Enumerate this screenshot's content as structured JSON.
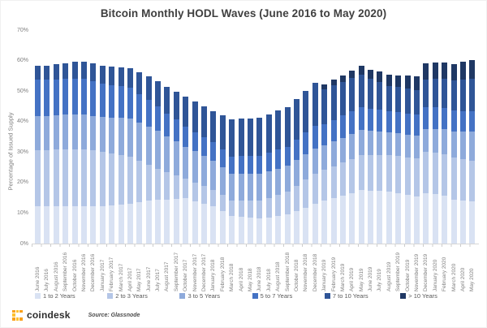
{
  "title": "Bitcoin Monthly HODL Waves (June 2016 to May 2020)",
  "chart_data": {
    "type": "bar",
    "stacked": true,
    "title": "Bitcoin Monthly HODL Waves (June 2016 to May 2020)",
    "xlabel": "",
    "ylabel": "Percentage of Issued Supply",
    "ylim": [
      0,
      70
    ],
    "ytick_labels": [
      "0%",
      "10%",
      "20%",
      "30%",
      "40%",
      "50%",
      "60%",
      "70%"
    ],
    "grid": false,
    "legend_position": "bottom",
    "categories": [
      "June 2016",
      "July 2016",
      "August 2016",
      "September 2016",
      "October 2016",
      "November 2016",
      "December 2016",
      "January 2017",
      "February 2017",
      "March 2017",
      "April 2017",
      "May 2017",
      "June 2017",
      "July 2017",
      "August 2017",
      "September 2017",
      "October 2017",
      "November 2017",
      "December 2017",
      "January 2018",
      "February 2018",
      "March 2018",
      "April 2018",
      "May 2018",
      "June 2018",
      "July 2018",
      "August 2018",
      "September 2018",
      "October 2018",
      "November 2018",
      "December 2018",
      "January 2019",
      "February 2019",
      "March 2019",
      "April 2019",
      "May 2019",
      "June 2019",
      "July 2019",
      "August 2019",
      "September 2019",
      "October 2019",
      "November 2019",
      "December 2019",
      "January 2020",
      "February 2020",
      "March 2020",
      "April 2020",
      "May 2020"
    ],
    "series": [
      {
        "name": "1 to 2 Years",
        "color": "#d9e2f3",
        "values": [
          12.2,
          12.2,
          12.2,
          12.3,
          12.3,
          12.3,
          12.2,
          12.2,
          12.5,
          12.8,
          13.1,
          13.5,
          14.0,
          14.4,
          14.5,
          14.7,
          14.8,
          13.9,
          13.1,
          12.2,
          10.7,
          9.1,
          8.8,
          8.5,
          8.2,
          8.6,
          9.1,
          9.5,
          10.7,
          11.8,
          13.0,
          14.0,
          14.9,
          15.8,
          16.6,
          17.5,
          17.3,
          17.2,
          17.0,
          16.5,
          16.0,
          15.5,
          16.5,
          16.2,
          15.6,
          14.5,
          14.2,
          13.9
        ]
      },
      {
        "name": "2 to 3 Years",
        "color": "#b4c6e7",
        "values": [
          18.5,
          18.5,
          18.6,
          18.6,
          18.7,
          18.7,
          18.3,
          17.8,
          17.0,
          16.3,
          15.5,
          13.7,
          11.8,
          10.0,
          8.8,
          7.7,
          6.5,
          6.2,
          5.8,
          5.5,
          5.2,
          4.9,
          5.2,
          5.5,
          5.8,
          6.4,
          6.9,
          7.5,
          8.3,
          9.2,
          10.0,
          10.2,
          10.5,
          10.8,
          11.2,
          11.5,
          11.7,
          11.8,
          12.0,
          12.2,
          12.3,
          12.5,
          13.5,
          13.6,
          13.7,
          13.8,
          13.5,
          13.2
        ]
      },
      {
        "name": "3 to 5 Years",
        "color": "#8eaadb",
        "values": [
          11.1,
          11.2,
          11.2,
          11.3,
          11.3,
          11.4,
          11.4,
          11.5,
          11.8,
          12.2,
          12.5,
          12.5,
          12.5,
          12.5,
          11.8,
          11.2,
          10.5,
          10.2,
          9.8,
          9.5,
          9.2,
          8.9,
          8.9,
          8.8,
          8.8,
          8.7,
          8.6,
          8.5,
          8.4,
          8.3,
          8.2,
          8.0,
          8.1,
          8.1,
          8.2,
          8.3,
          8.0,
          7.8,
          7.5,
          7.4,
          7.4,
          7.3,
          7.5,
          7.8,
          8.2,
          8.5,
          9.0,
          9.6
        ]
      },
      {
        "name": "5 to 7 Years",
        "color": "#4472c4",
        "values": [
          12.0,
          11.9,
          11.9,
          11.8,
          11.8,
          11.7,
          11.4,
          11.0,
          10.7,
          10.3,
          10.0,
          9.3,
          8.7,
          8.0,
          7.5,
          7.0,
          6.5,
          6.3,
          6.2,
          6.0,
          5.8,
          5.7,
          5.8,
          5.9,
          6.0,
          6.1,
          6.2,
          6.3,
          6.7,
          7.1,
          7.5,
          7.0,
          7.1,
          7.3,
          7.4,
          7.5,
          7.3,
          7.2,
          7.0,
          7.0,
          7.0,
          7.0,
          7.1,
          7.0,
          6.9,
          6.8,
          6.8,
          6.7
        ]
      },
      {
        "name": "7 to 10 Years",
        "color": "#2f5597",
        "values": [
          4.4,
          4.6,
          4.9,
          5.1,
          5.4,
          5.6,
          5.7,
          5.8,
          6.0,
          6.3,
          6.5,
          7.1,
          7.8,
          8.4,
          8.9,
          9.3,
          9.8,
          9.9,
          10.0,
          10.1,
          11.2,
          12.2,
          12.3,
          12.3,
          12.4,
          12.6,
          12.8,
          13.0,
          13.3,
          13.7,
          14.0,
          11.5,
          11.3,
          11.0,
          10.8,
          10.5,
          9.7,
          9.0,
          8.2,
          8.2,
          8.1,
          8.1,
          9.3,
          9.5,
          9.6,
          9.8,
          10.2,
          10.7
        ]
      },
      {
        "name": "> 10 Years",
        "color": "#1f3864",
        "values": [
          0,
          0,
          0,
          0,
          0,
          0,
          0,
          0,
          0,
          0,
          0,
          0,
          0,
          0,
          0,
          0,
          0,
          0,
          0,
          0,
          0,
          0,
          0,
          0,
          0,
          0,
          0,
          0,
          0,
          0,
          0,
          1.5,
          1.9,
          2.2,
          2.6,
          2.9,
          3.1,
          3.4,
          3.6,
          3.9,
          4.2,
          4.5,
          5.1,
          5.2,
          5.4,
          5.5,
          5.8,
          6.0
        ]
      }
    ]
  },
  "footer": {
    "brand": "coindesk",
    "source": "Source: Glassnode",
    "logo_colors": [
      "#f9a11b",
      "#fdc130"
    ]
  }
}
